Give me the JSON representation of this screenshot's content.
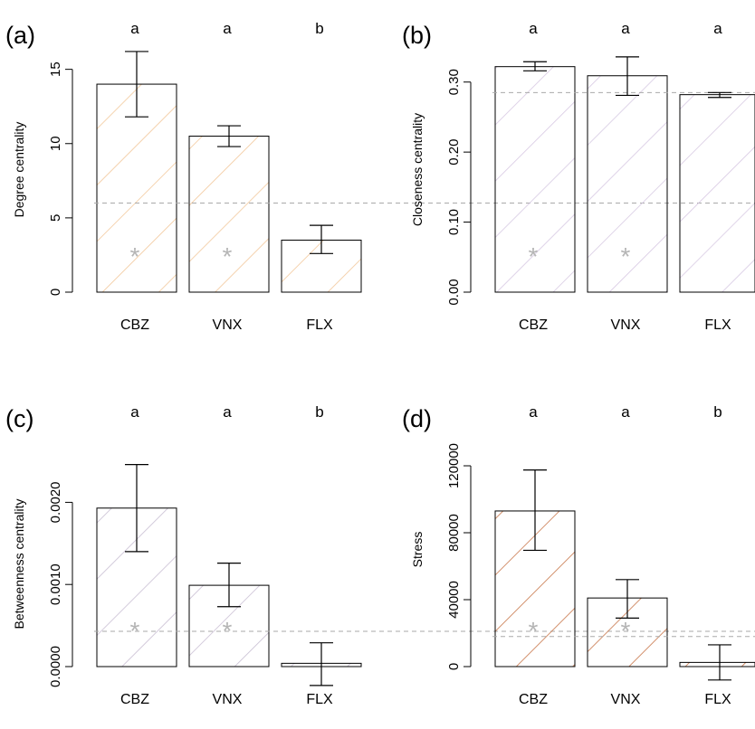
{
  "chart_data": [
    {
      "panel_label": "(a)",
      "type": "bar",
      "ylabel": "Degree centrality",
      "categories": [
        "CBZ",
        "VNX",
        "FLX"
      ],
      "values": [
        14.0,
        10.5,
        3.5
      ],
      "err_low": [
        11.8,
        9.8,
        2.6
      ],
      "err_high": [
        16.2,
        11.2,
        4.5
      ],
      "significance_letters": [
        "a",
        "a",
        "b"
      ],
      "markers": [
        "*",
        "*",
        ""
      ],
      "reference_line": 6.0,
      "ylim": [
        0,
        16.5
      ],
      "yticks": [
        0,
        5,
        10,
        15
      ],
      "ytick_labels": [
        "0",
        "5",
        "10",
        "15"
      ],
      "hatch_color": "#f2c79a"
    },
    {
      "panel_label": "(b)",
      "type": "bar",
      "ylabel": "Closeness centrality",
      "categories": [
        "CBZ",
        "VNX",
        "FLX"
      ],
      "values": [
        0.322,
        0.309,
        0.282
      ],
      "err_low": [
        0.316,
        0.281,
        0.278
      ],
      "err_high": [
        0.329,
        0.336,
        0.285
      ],
      "significance_letters": [
        "a",
        "a",
        "a"
      ],
      "markers": [
        "*",
        "*",
        ""
      ],
      "reference_line": 0.285,
      "ylim": [
        0,
        0.35
      ],
      "yticks": [
        0,
        0.1,
        0.2,
        0.3
      ],
      "ytick_labels": [
        "0.00",
        "0.10",
        "0.20",
        "0.30"
      ],
      "hatch_color": "#d7c9e3"
    },
    {
      "panel_label": "(c)",
      "type": "bar",
      "ylabel": "Betweenness centrality",
      "categories": [
        "CBZ",
        "VNX",
        "FLX"
      ],
      "values": [
        0.00193,
        0.00099,
        4e-05
      ],
      "err_low": [
        0.0014,
        0.00073,
        -0.00023
      ],
      "err_high": [
        0.00246,
        0.00126,
        0.00029
      ],
      "significance_letters": [
        "a",
        "a",
        "b"
      ],
      "markers": [
        "*",
        "*",
        ""
      ],
      "reference_line": 0.00043,
      "ylim": [
        0,
        0.0025
      ],
      "yticks": [
        0,
        0.001,
        0.002
      ],
      "ytick_labels": [
        "0.0000",
        "0.0010",
        "0.0020"
      ],
      "hatch_color": "#c9bfd3"
    },
    {
      "panel_label": "(d)",
      "type": "bar",
      "ylabel": "Stress",
      "categories": [
        "CBZ",
        "VNX",
        "FLX"
      ],
      "values": [
        93000,
        41000,
        2500
      ],
      "err_low": [
        69500,
        29000,
        -8000
      ],
      "err_high": [
        117500,
        52000,
        13000
      ],
      "significance_letters": [
        "a",
        "a",
        "b"
      ],
      "markers": [
        "*",
        "*",
        ""
      ],
      "reference_line": 18000,
      "ylim": [
        0,
        140000
      ],
      "yticks": [
        0,
        40000,
        80000,
        120000
      ],
      "ytick_labels": [
        "0",
        "40000",
        "80000",
        "120000"
      ],
      "hatch_color": "#c8764a"
    }
  ]
}
